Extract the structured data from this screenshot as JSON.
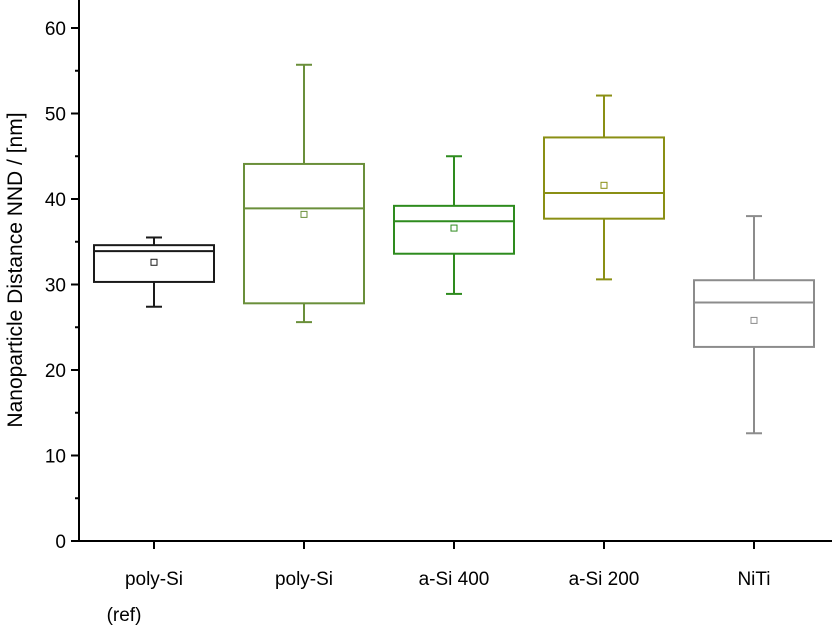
{
  "chart_data": {
    "type": "box",
    "title": "",
    "xlabel": "",
    "ylabel": "Nanoparticle Distance NND / [nm]",
    "ylim": [
      0,
      64
    ],
    "yticks": [
      0,
      10,
      20,
      30,
      40,
      50,
      60
    ],
    "yminor_step": 5,
    "grid": false,
    "legend": "none",
    "categories": [
      {
        "lines": [
          "poly-Si",
          "(ref)"
        ]
      },
      {
        "lines": [
          "poly-Si"
        ]
      },
      {
        "lines": [
          "a-Si 400"
        ]
      },
      {
        "lines": [
          "a-Si 200"
        ]
      },
      {
        "lines": [
          "NiTi"
        ]
      }
    ],
    "boxes": [
      {
        "whisker_low": 27.4,
        "q1": 30.3,
        "median": 33.9,
        "q3": 34.6,
        "whisker_high": 35.5,
        "mean": 32.6,
        "color": "#1a1a1a"
      },
      {
        "whisker_low": 25.6,
        "q1": 27.8,
        "median": 38.9,
        "q3": 44.1,
        "whisker_high": 55.7,
        "mean": 38.2,
        "color": "#6a8f3a"
      },
      {
        "whisker_low": 28.9,
        "q1": 33.6,
        "median": 37.4,
        "q3": 39.2,
        "whisker_high": 45.0,
        "mean": 36.6,
        "color": "#2e8b1e"
      },
      {
        "whisker_low": 30.6,
        "q1": 37.7,
        "median": 40.7,
        "q3": 47.2,
        "whisker_high": 52.1,
        "mean": 41.6,
        "color": "#8a8f14"
      },
      {
        "whisker_low": 12.6,
        "q1": 22.7,
        "median": 27.9,
        "q3": 30.5,
        "whisker_high": 38.0,
        "mean": 25.8,
        "color": "#8c8c8c"
      }
    ]
  }
}
